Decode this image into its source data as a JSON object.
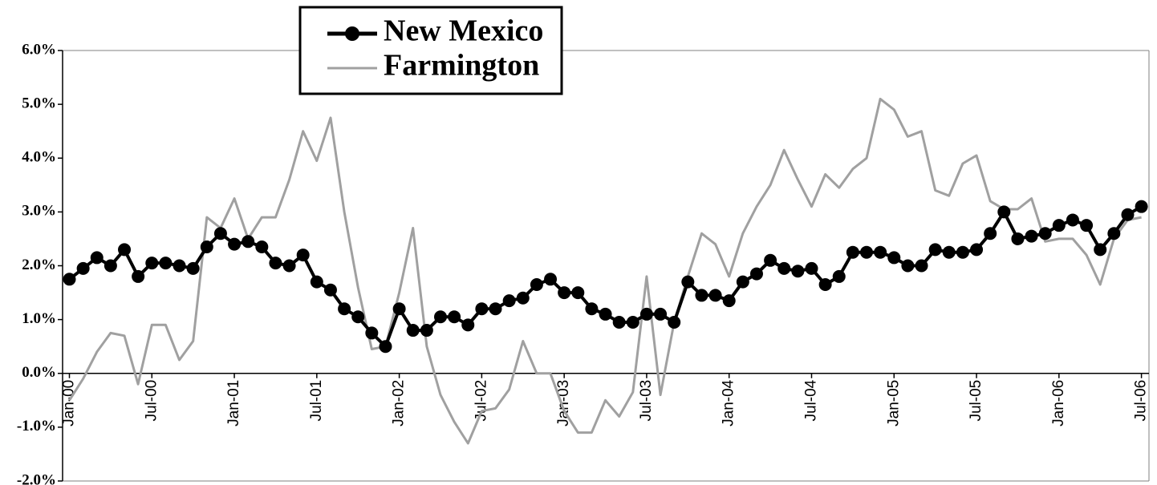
{
  "chart_data": {
    "type": "line",
    "categories": [
      "Jan-00",
      null,
      null,
      null,
      null,
      null,
      "Jul-00",
      null,
      null,
      null,
      null,
      null,
      "Jan-01",
      null,
      null,
      null,
      null,
      null,
      "Jul-01",
      null,
      null,
      null,
      null,
      null,
      "Jan-02",
      null,
      null,
      null,
      null,
      null,
      "Jul-02",
      null,
      null,
      null,
      null,
      null,
      "Jan-03",
      null,
      null,
      null,
      null,
      null,
      "Jul-03",
      null,
      null,
      null,
      null,
      null,
      "Jan-04",
      null,
      null,
      null,
      null,
      null,
      "Jul-04",
      null,
      null,
      null,
      null,
      null,
      "Jan-05",
      null,
      null,
      null,
      null,
      null,
      "Jul-05",
      null,
      null,
      null,
      null,
      null,
      "Jan-06",
      null,
      null,
      null,
      null,
      null,
      "Jul-06"
    ],
    "series": [
      {
        "name": "New Mexico",
        "color": "#000000",
        "markers": true,
        "values": [
          1.75,
          1.95,
          2.15,
          2.0,
          2.3,
          1.8,
          2.05,
          2.05,
          2.0,
          1.95,
          2.35,
          2.6,
          2.4,
          2.45,
          2.35,
          2.05,
          2.0,
          2.2,
          1.7,
          1.55,
          1.2,
          1.05,
          0.75,
          0.5,
          1.2,
          0.8,
          0.8,
          1.05,
          1.05,
          0.9,
          1.2,
          1.2,
          1.35,
          1.4,
          1.65,
          1.75,
          1.5,
          1.5,
          1.2,
          1.1,
          0.95,
          0.95,
          1.1,
          1.1,
          0.95,
          1.7,
          1.45,
          1.45,
          1.35,
          1.7,
          1.85,
          2.1,
          1.95,
          1.9,
          1.95,
          1.65,
          1.8,
          2.25,
          2.25,
          2.25,
          2.15,
          2.0,
          2.0,
          2.3,
          2.25,
          2.25,
          2.3,
          2.6,
          3.0,
          2.5,
          2.55,
          2.6,
          2.75,
          2.85,
          2.75,
          2.3,
          2.6,
          2.95,
          3.1
        ]
      },
      {
        "name": "Farmington",
        "color": "#a0a0a0",
        "markers": false,
        "values": [
          -0.5,
          -0.1,
          0.4,
          0.75,
          0.7,
          -0.2,
          0.9,
          0.9,
          0.25,
          0.6,
          2.9,
          2.7,
          3.25,
          2.5,
          2.9,
          2.9,
          3.6,
          4.5,
          3.95,
          4.75,
          3.0,
          1.6,
          0.45,
          0.5,
          1.5,
          2.7,
          0.5,
          -0.4,
          -0.9,
          -1.3,
          -0.7,
          -0.65,
          -0.3,
          0.6,
          0.0,
          0.0,
          -0.7,
          -1.1,
          -1.1,
          -0.5,
          -0.8,
          -0.35,
          1.8,
          -0.4,
          0.95,
          1.8,
          2.6,
          2.4,
          1.8,
          2.6,
          3.1,
          3.5,
          4.15,
          3.6,
          3.1,
          3.7,
          3.45,
          3.8,
          4.0,
          5.1,
          4.9,
          4.4,
          4.5,
          3.4,
          3.3,
          3.9,
          4.05,
          3.2,
          3.05,
          3.05,
          3.25,
          2.45,
          2.5,
          2.5,
          2.2,
          1.65,
          2.5,
          2.85,
          2.9
        ]
      }
    ],
    "ylim": [
      -2,
      6
    ],
    "yticks": [
      {
        "value": -2,
        "label": "-2.0%"
      },
      {
        "value": -1,
        "label": "-1.0%"
      },
      {
        "value": 0,
        "label": "0.0%"
      },
      {
        "value": 1,
        "label": "1.0%"
      },
      {
        "value": 2,
        "label": "2.0%"
      },
      {
        "value": 3,
        "label": "3.0%"
      },
      {
        "value": 4,
        "label": "4.0%"
      },
      {
        "value": 5,
        "label": "5.0%"
      },
      {
        "value": 6,
        "label": "6.0%"
      }
    ],
    "grid": false,
    "legend": "top"
  }
}
